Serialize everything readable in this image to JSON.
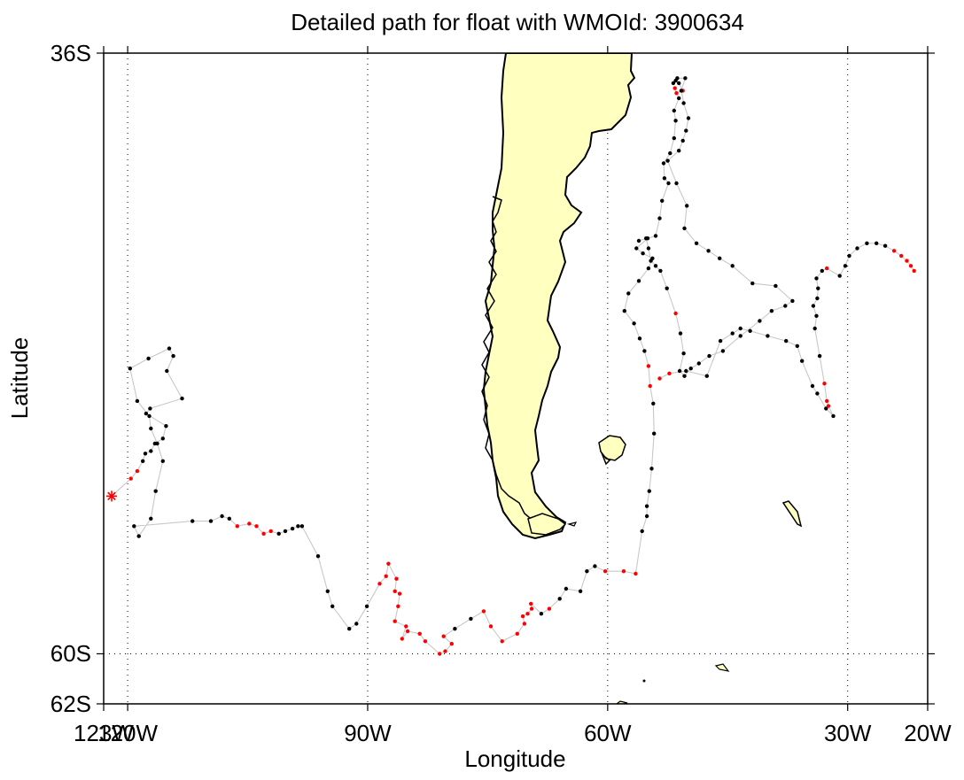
{
  "chart_data": {
    "type": "scatter",
    "title": "Detailed path for float with WMOId: 3900634",
    "xlabel": "Longitude",
    "ylabel": "Latitude",
    "xlim": [
      -123,
      -20
    ],
    "ylim": [
      -62,
      -36
    ],
    "x_ticks": [
      {
        "value": -123,
        "label": "123W"
      },
      {
        "value": -120,
        "label": "120W"
      },
      {
        "value": -90,
        "label": "90W"
      },
      {
        "value": -60,
        "label": "60W"
      },
      {
        "value": -30,
        "label": "30W"
      },
      {
        "value": -20,
        "label": "20W"
      }
    ],
    "y_ticks": [
      {
        "value": -36,
        "label": "36S"
      },
      {
        "value": -60,
        "label": "60S"
      },
      {
        "value": -62,
        "label": "62S"
      }
    ],
    "grid": "dotted",
    "colors": {
      "land": "#ffffc0",
      "coast": "#000000",
      "track": "#c8c8c8",
      "profile": "#000000",
      "profile_highlight": "#ff0000",
      "deploy": "#ff0000"
    },
    "deployment": {
      "lon": -122.0,
      "lat": -53.7
    },
    "track": [
      [
        -122.0,
        -53.7,
        "r"
      ],
      [
        -119.6,
        -53.0,
        "r"
      ],
      [
        -118.8,
        -52.7,
        "r"
      ],
      [
        -118.1,
        -52.3,
        "k"
      ],
      [
        -117.8,
        -52.0,
        "k"
      ],
      [
        -117.1,
        -51.9,
        "k"
      ],
      [
        -116.6,
        -51.6,
        "k"
      ],
      [
        -115.6,
        -51.4,
        "k"
      ],
      [
        -115.2,
        -50.9,
        "k"
      ],
      [
        -117.7,
        -50.4,
        "k"
      ],
      [
        -117.2,
        -50.2,
        "k"
      ],
      [
        -113.2,
        -49.8,
        "k"
      ],
      [
        -115.1,
        -48.7,
        "k"
      ],
      [
        -114.3,
        -48.1,
        "k"
      ],
      [
        -114.8,
        -47.8,
        "k"
      ],
      [
        -117.4,
        -48.2,
        "k"
      ],
      [
        -119.7,
        -48.6,
        "k"
      ],
      [
        -118.8,
        -49.9,
        "k"
      ],
      [
        -117.3,
        -50.5,
        "k"
      ],
      [
        -117.1,
        -51.0,
        "k"
      ],
      [
        -116.3,
        -51.6,
        "k"
      ],
      [
        -115.6,
        -52.3,
        "k"
      ],
      [
        -116.5,
        -53.5,
        "k"
      ],
      [
        -117.1,
        -54.6,
        "k"
      ],
      [
        -118.6,
        -55.3,
        "k"
      ],
      [
        -119.2,
        -54.9,
        "k"
      ],
      [
        -111.9,
        -54.7,
        "k"
      ],
      [
        -109.6,
        -54.7,
        "k"
      ],
      [
        -108.2,
        -54.5,
        "k"
      ],
      [
        -107.3,
        -54.6,
        "k"
      ],
      [
        -106.3,
        -54.9,
        "r"
      ],
      [
        -104.8,
        -54.8,
        "r"
      ],
      [
        -103.9,
        -54.9,
        "r"
      ],
      [
        -103.0,
        -55.2,
        "r"
      ],
      [
        -102.1,
        -55.1,
        "r"
      ],
      [
        -101.1,
        -55.2,
        "k"
      ],
      [
        -100.3,
        -55.1,
        "k"
      ],
      [
        -99.4,
        -55.0,
        "k"
      ],
      [
        -98.7,
        -54.9,
        "k"
      ],
      [
        -98.2,
        -54.9,
        "k"
      ],
      [
        -96.2,
        -56.1,
        "k"
      ],
      [
        -95.0,
        -57.5,
        "k"
      ],
      [
        -94.4,
        -58.1,
        "k"
      ],
      [
        -92.3,
        -59.0,
        "k"
      ],
      [
        -91.4,
        -58.8,
        "k"
      ],
      [
        -90.1,
        -58.1,
        "k"
      ],
      [
        -88.5,
        -57.2,
        "r"
      ],
      [
        -87.7,
        -56.9,
        "r"
      ],
      [
        -87.4,
        -56.4,
        "r"
      ],
      [
        -86.4,
        -57.0,
        "r"
      ],
      [
        -86.6,
        -57.5,
        "r"
      ],
      [
        -86.0,
        -57.6,
        "r"
      ],
      [
        -86.2,
        -58.1,
        "r"
      ],
      [
        -86.6,
        -58.7,
        "r"
      ],
      [
        -85.2,
        -58.9,
        "r"
      ],
      [
        -85.7,
        -59.4,
        "r"
      ],
      [
        -85.0,
        -59.1,
        "r"
      ],
      [
        -83.5,
        -59.2,
        "r"
      ],
      [
        -82.8,
        -59.5,
        "r"
      ],
      [
        -81.0,
        -60.0,
        "r"
      ],
      [
        -80.3,
        -59.9,
        "r"
      ],
      [
        -79.5,
        -59.6,
        "r"
      ],
      [
        -80.5,
        -59.3,
        "r"
      ],
      [
        -79.1,
        -59.0,
        "k"
      ],
      [
        -77.1,
        -58.6,
        "k"
      ],
      [
        -75.5,
        -58.3,
        "r"
      ],
      [
        -74.6,
        -58.9,
        "r"
      ],
      [
        -73.2,
        -59.5,
        "r"
      ],
      [
        -71.3,
        -59.2,
        "r"
      ],
      [
        -70.4,
        -58.8,
        "r"
      ],
      [
        -70.6,
        -58.5,
        "r"
      ],
      [
        -70.0,
        -58.4,
        "r"
      ],
      [
        -69.5,
        -58.2,
        "r"
      ],
      [
        -69.6,
        -58.0,
        "r"
      ],
      [
        -68.3,
        -58.4,
        "k"
      ],
      [
        -67.3,
        -58.2,
        "r"
      ],
      [
        -66.0,
        -57.8,
        "k"
      ],
      [
        -65.2,
        -57.4,
        "k"
      ],
      [
        -63.4,
        -57.5,
        "k"
      ],
      [
        -62.6,
        -56.7,
        "k"
      ],
      [
        -61.6,
        -56.5,
        "k"
      ],
      [
        -60.3,
        -56.7,
        "r"
      ],
      [
        -58.0,
        -56.7,
        "r"
      ],
      [
        -56.5,
        -56.8,
        "r"
      ],
      [
        -55.7,
        -55.1,
        "k"
      ],
      [
        -55.1,
        -54.5,
        "k"
      ],
      [
        -55.1,
        -54.1,
        "k"
      ],
      [
        -54.8,
        -53.5,
        "k"
      ],
      [
        -54.5,
        -52.6,
        "k"
      ],
      [
        -54.2,
        -51.2,
        "k"
      ],
      [
        -54.3,
        -50.0,
        "k"
      ],
      [
        -54.7,
        -49.3,
        "r"
      ],
      [
        -54.9,
        -48.5,
        "r"
      ],
      [
        -55.4,
        -47.9,
        "k"
      ],
      [
        -56.0,
        -47.4,
        "k"
      ],
      [
        -56.7,
        -46.8,
        "k"
      ],
      [
        -57.9,
        -46.3,
        "k"
      ],
      [
        -57.4,
        -45.6,
        "k"
      ],
      [
        -56.1,
        -45.1,
        "k"
      ],
      [
        -54.9,
        -44.6,
        "k"
      ],
      [
        -54.4,
        -44.2,
        "k"
      ],
      [
        -55.6,
        -44.0,
        "k"
      ],
      [
        -56.4,
        -43.8,
        "k"
      ],
      [
        -55.0,
        -43.4,
        "k"
      ],
      [
        -54.0,
        -43.3,
        "k"
      ],
      [
        -53.5,
        -42.6,
        "k"
      ],
      [
        -53.2,
        -41.9,
        "k"
      ],
      [
        -52.4,
        -41.2,
        "k"
      ],
      [
        -52.9,
        -41.0,
        "k"
      ],
      [
        -53.0,
        -40.4,
        "k"
      ],
      [
        -52.2,
        -40.0,
        "k"
      ],
      [
        -51.7,
        -39.4,
        "k"
      ],
      [
        -51.5,
        -38.7,
        "k"
      ],
      [
        -51.7,
        -38.3,
        "k"
      ],
      [
        -51.1,
        -37.8,
        "k"
      ],
      [
        -51.6,
        -37.4,
        "r"
      ],
      [
        -51.4,
        -37.6,
        "r"
      ],
      [
        -50.6,
        -37.5,
        "r"
      ],
      [
        -51.1,
        -37.2,
        "k"
      ],
      [
        -51.5,
        -37.1,
        "k"
      ],
      [
        -51.8,
        -37.2,
        "k"
      ],
      [
        -51.3,
        -37.0,
        "k"
      ],
      [
        -50.3,
        -37.0,
        "k"
      ],
      [
        -50.8,
        -37.5,
        "k"
      ],
      [
        -50.5,
        -38.0,
        "k"
      ],
      [
        -49.9,
        -38.6,
        "k"
      ],
      [
        -50.2,
        -39.1,
        "k"
      ],
      [
        -50.6,
        -39.5,
        "k"
      ],
      [
        -51.1,
        -39.9,
        "k"
      ],
      [
        -52.5,
        -40.3,
        "k"
      ],
      [
        -51.4,
        -41.2,
        "k"
      ],
      [
        -50.1,
        -42.1,
        "k"
      ],
      [
        -50.4,
        -43.0,
        "k"
      ],
      [
        -48.9,
        -43.6,
        "k"
      ],
      [
        -47.4,
        -43.9,
        "k"
      ],
      [
        -46.0,
        -44.2,
        "k"
      ],
      [
        -44.4,
        -44.5,
        "k"
      ],
      [
        -41.9,
        -45.2,
        "k"
      ],
      [
        -39.0,
        -45.3,
        "k"
      ],
      [
        -36.9,
        -45.9,
        "k"
      ],
      [
        -37.8,
        -46.1,
        "k"
      ],
      [
        -39.5,
        -46.3,
        "k"
      ],
      [
        -41.0,
        -46.7,
        "k"
      ],
      [
        -43.4,
        -47.3,
        "k"
      ],
      [
        -45.6,
        -47.9,
        "k"
      ],
      [
        -47.3,
        -48.1,
        "k"
      ],
      [
        -48.6,
        -48.4,
        "k"
      ],
      [
        -49.6,
        -48.6,
        "k"
      ],
      [
        -50.4,
        -48.9,
        "k"
      ],
      [
        -51.0,
        -48.7,
        "k"
      ],
      [
        -50.5,
        -48.0,
        "k"
      ],
      [
        -50.9,
        -47.2,
        "k"
      ],
      [
        -51.5,
        -46.4,
        "r"
      ],
      [
        -52.6,
        -45.4,
        "k"
      ],
      [
        -53.4,
        -44.7,
        "k"
      ],
      [
        -54.0,
        -44.5,
        "k"
      ],
      [
        -54.6,
        -44.3,
        "k"
      ],
      [
        -54.9,
        -43.8,
        "k"
      ],
      [
        -55.2,
        -43.4,
        "k"
      ],
      [
        -56.1,
        -43.5,
        "k"
      ]
    ],
    "east_track": [
      [
        -53.5,
        -49.0,
        "r"
      ],
      [
        -52.3,
        -48.8,
        "r"
      ],
      [
        -50.2,
        -48.7,
        "k"
      ],
      [
        -47.6,
        -48.9,
        "k"
      ],
      [
        -45.9,
        -47.5,
        "k"
      ],
      [
        -44.4,
        -47.2,
        "k"
      ],
      [
        -43.4,
        -47.0,
        "k"
      ],
      [
        -42.2,
        -47.1,
        "k"
      ],
      [
        -40.0,
        -47.3,
        "k"
      ],
      [
        -37.7,
        -47.5,
        "k"
      ],
      [
        -36.3,
        -47.7,
        "k"
      ],
      [
        -35.7,
        -48.3,
        "k"
      ],
      [
        -34.4,
        -49.3,
        "k"
      ],
      [
        -33.8,
        -49.6,
        "k"
      ],
      [
        -32.7,
        -50.2,
        "k"
      ],
      [
        -31.8,
        -50.5,
        "k"
      ],
      [
        -32.4,
        -50.1,
        "r"
      ],
      [
        -32.6,
        -49.9,
        "r"
      ],
      [
        -32.9,
        -49.2,
        "r"
      ],
      [
        -33.5,
        -48.1,
        "k"
      ],
      [
        -34.1,
        -47.0,
        "k"
      ],
      [
        -33.9,
        -46.5,
        "k"
      ],
      [
        -34.3,
        -46.1,
        "k"
      ],
      [
        -33.8,
        -45.8,
        "k"
      ],
      [
        -33.7,
        -45.4,
        "k"
      ],
      [
        -33.9,
        -45.0,
        "k"
      ],
      [
        -33.2,
        -44.7,
        "k"
      ],
      [
        -32.6,
        -44.6,
        "r"
      ],
      [
        -31.0,
        -44.9,
        "k"
      ],
      [
        -30.3,
        -44.5,
        "k"
      ],
      [
        -29.8,
        -44.1,
        "k"
      ],
      [
        -28.8,
        -43.8,
        "k"
      ],
      [
        -27.6,
        -43.6,
        "k"
      ],
      [
        -26.4,
        -43.6,
        "k"
      ],
      [
        -25.3,
        -43.7,
        "k"
      ],
      [
        -24.2,
        -43.9,
        "r"
      ],
      [
        -23.3,
        -44.1,
        "r"
      ],
      [
        -22.6,
        -44.3,
        "r"
      ],
      [
        -22.1,
        -44.5,
        "r"
      ],
      [
        -21.7,
        -44.7,
        "r"
      ]
    ],
    "islands": [
      "Falkland Islands",
      "South Georgia",
      "South Shetland Islands"
    ]
  }
}
